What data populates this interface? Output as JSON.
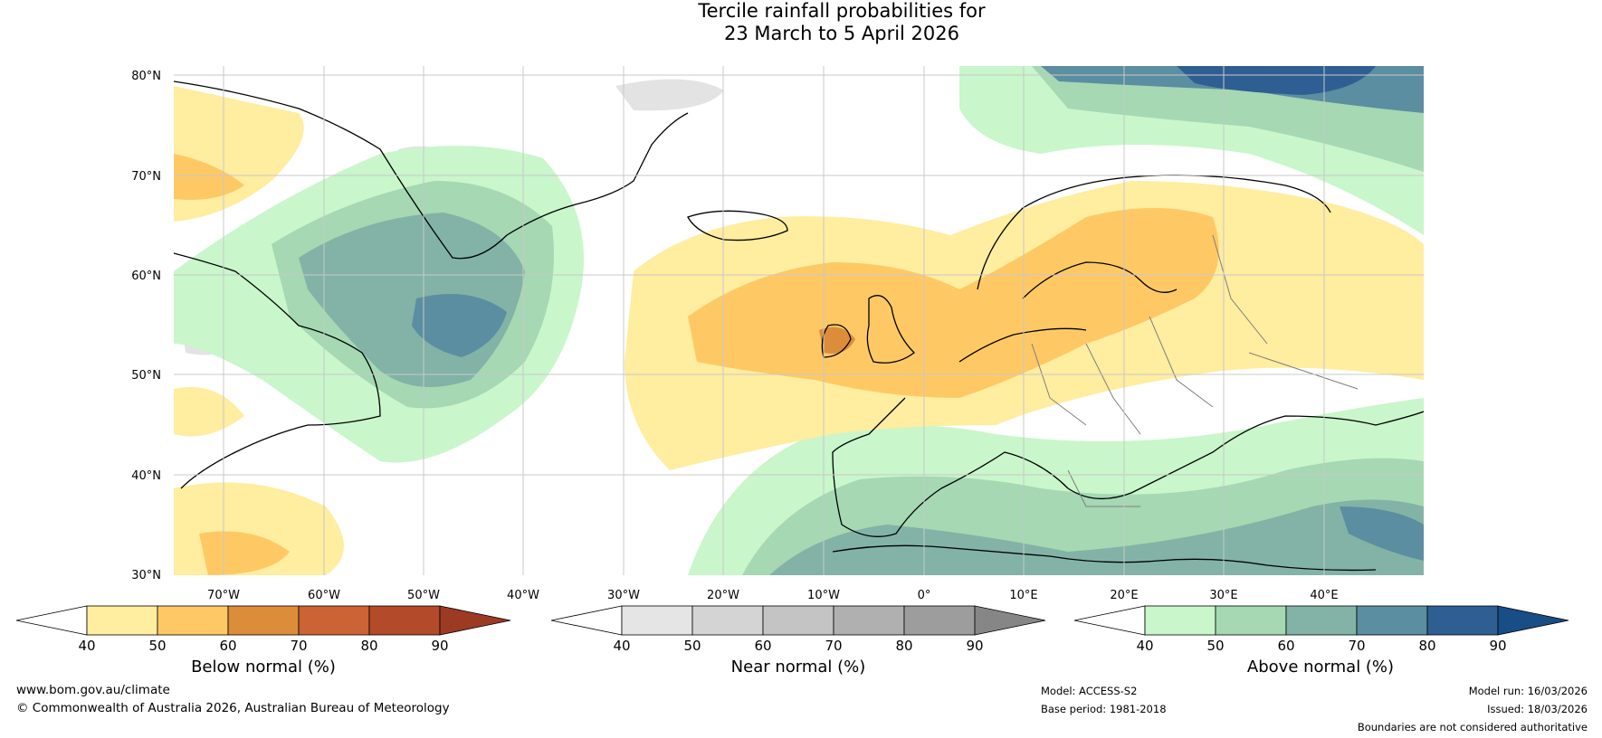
{
  "title_line1": "Tercile rainfall probabilities for",
  "title_line2": "23 March to 5 April 2026",
  "lat_labels": [
    "80°N",
    "70°N",
    "60°N",
    "50°N",
    "40°N",
    "30°N"
  ],
  "lon_labels": [
    "70°W",
    "60°W",
    "50°W",
    "40°W",
    "30°W",
    "20°W",
    "10°W",
    "0°",
    "10°E",
    "20°E",
    "30°E",
    "40°E"
  ],
  "colorbars": [
    {
      "label": "Below normal (%)",
      "ticks": [
        "40",
        "50",
        "60",
        "70",
        "80",
        "90"
      ],
      "colors": [
        "#ffeda0",
        "#fec965",
        "#dc8d3a",
        "#cb6334",
        "#b34a2a"
      ],
      "under": "#ffffff",
      "over": "#9c3a24"
    },
    {
      "label": "Near normal (%)",
      "ticks": [
        "40",
        "50",
        "60",
        "70",
        "80",
        "90"
      ],
      "colors": [
        "#e5e5e5",
        "#d4d4d4",
        "#c4c4c4",
        "#b0b0b0",
        "#9d9d9d"
      ],
      "under": "#ffffff",
      "over": "#868686"
    },
    {
      "label": "Above normal (%)",
      "ticks": [
        "40",
        "50",
        "60",
        "70",
        "80",
        "90"
      ],
      "colors": [
        "#c9f6cb",
        "#a5d8b3",
        "#82b3a6",
        "#5b8ea0",
        "#2f5f92"
      ],
      "under": "#ffffff",
      "over": "#184d85"
    }
  ],
  "footer": {
    "website": "www.bom.gov.au/climate",
    "copyright": "© Commonwealth of Australia 2026, Australian Bureau of Meteorology",
    "model": "Model: ACCESS-S2",
    "base_period": "Base period: 1981-2018",
    "model_run": "Model run: 16/03/2026",
    "issued": "Issued: 18/03/2026",
    "disclaimer": "Boundaries are not considered authoritative"
  },
  "colors": {
    "land": "#ffffff",
    "grid": "#c8c8c8",
    "coast": "#000000",
    "border": "#7f7f7f"
  }
}
